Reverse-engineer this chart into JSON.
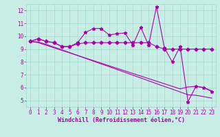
{
  "xlabel": "Windchill (Refroidissement éolien,°C)",
  "background_color": "#c8ede5",
  "line_color": "#aa00aa",
  "xlim": [
    -0.5,
    23.5
  ],
  "ylim": [
    4.5,
    12.5
  ],
  "yticks": [
    5,
    6,
    7,
    8,
    9,
    10,
    11,
    12
  ],
  "xticks": [
    0,
    1,
    2,
    3,
    4,
    5,
    6,
    7,
    8,
    9,
    10,
    11,
    12,
    13,
    14,
    15,
    16,
    17,
    18,
    19,
    20,
    21,
    22,
    23
  ],
  "series": [
    {
      "x": [
        0,
        1,
        2,
        3,
        4,
        5,
        6,
        7,
        8,
        9,
        10,
        11,
        12,
        13,
        14,
        15,
        16,
        17,
        18,
        19,
        20,
        21,
        22,
        23
      ],
      "y": [
        9.6,
        9.8,
        9.6,
        9.5,
        9.2,
        9.2,
        9.5,
        10.3,
        10.6,
        10.6,
        10.1,
        10.2,
        10.25,
        9.3,
        10.7,
        9.3,
        12.3,
        9.1,
        8.0,
        9.2,
        4.9,
        6.1,
        6.0,
        5.7
      ],
      "marker": "*",
      "ms": 3.5
    },
    {
      "x": [
        0,
        1,
        2,
        3,
        4,
        5,
        6,
        7,
        8,
        9,
        10,
        11,
        12,
        13,
        14,
        15,
        16,
        17,
        18,
        19,
        20,
        21,
        22,
        23
      ],
      "y": [
        9.6,
        9.8,
        9.6,
        9.5,
        9.2,
        9.2,
        9.4,
        9.5,
        9.5,
        9.5,
        9.5,
        9.5,
        9.5,
        9.5,
        9.5,
        9.5,
        9.2,
        9.0,
        9.0,
        9.0,
        9.0,
        9.0,
        9.0,
        9.0
      ],
      "marker": "D",
      "ms": 2.5
    },
    {
      "x": [
        0,
        1,
        2,
        3,
        4,
        5,
        6,
        7,
        8,
        9,
        10,
        11,
        12,
        13,
        14,
        15,
        16,
        17,
        18,
        19,
        20,
        21,
        22,
        23
      ],
      "y": [
        9.6,
        9.55,
        9.37,
        9.15,
        8.94,
        8.72,
        8.5,
        8.28,
        8.06,
        7.84,
        7.63,
        7.41,
        7.19,
        6.97,
        6.75,
        6.53,
        6.31,
        6.09,
        5.88,
        5.66,
        5.44,
        5.4,
        5.3,
        5.18
      ],
      "marker": null,
      "ms": 0
    },
    {
      "x": [
        0,
        1,
        2,
        3,
        4,
        5,
        6,
        7,
        8,
        9,
        10,
        11,
        12,
        13,
        14,
        15,
        16,
        17,
        18,
        19,
        20,
        21,
        22,
        23
      ],
      "y": [
        9.6,
        9.5,
        9.3,
        9.1,
        8.9,
        8.7,
        8.5,
        8.3,
        8.1,
        7.9,
        7.7,
        7.5,
        7.3,
        7.1,
        6.9,
        6.7,
        6.5,
        6.3,
        6.1,
        5.9,
        6.05,
        6.1,
        6.0,
        5.75
      ],
      "marker": null,
      "ms": 0
    }
  ],
  "grid_color": "#a0d8cc",
  "tick_color": "#aa00aa",
  "label_color": "#aa00aa",
  "font_size": 5.5,
  "xlabel_fontsize": 6.0
}
